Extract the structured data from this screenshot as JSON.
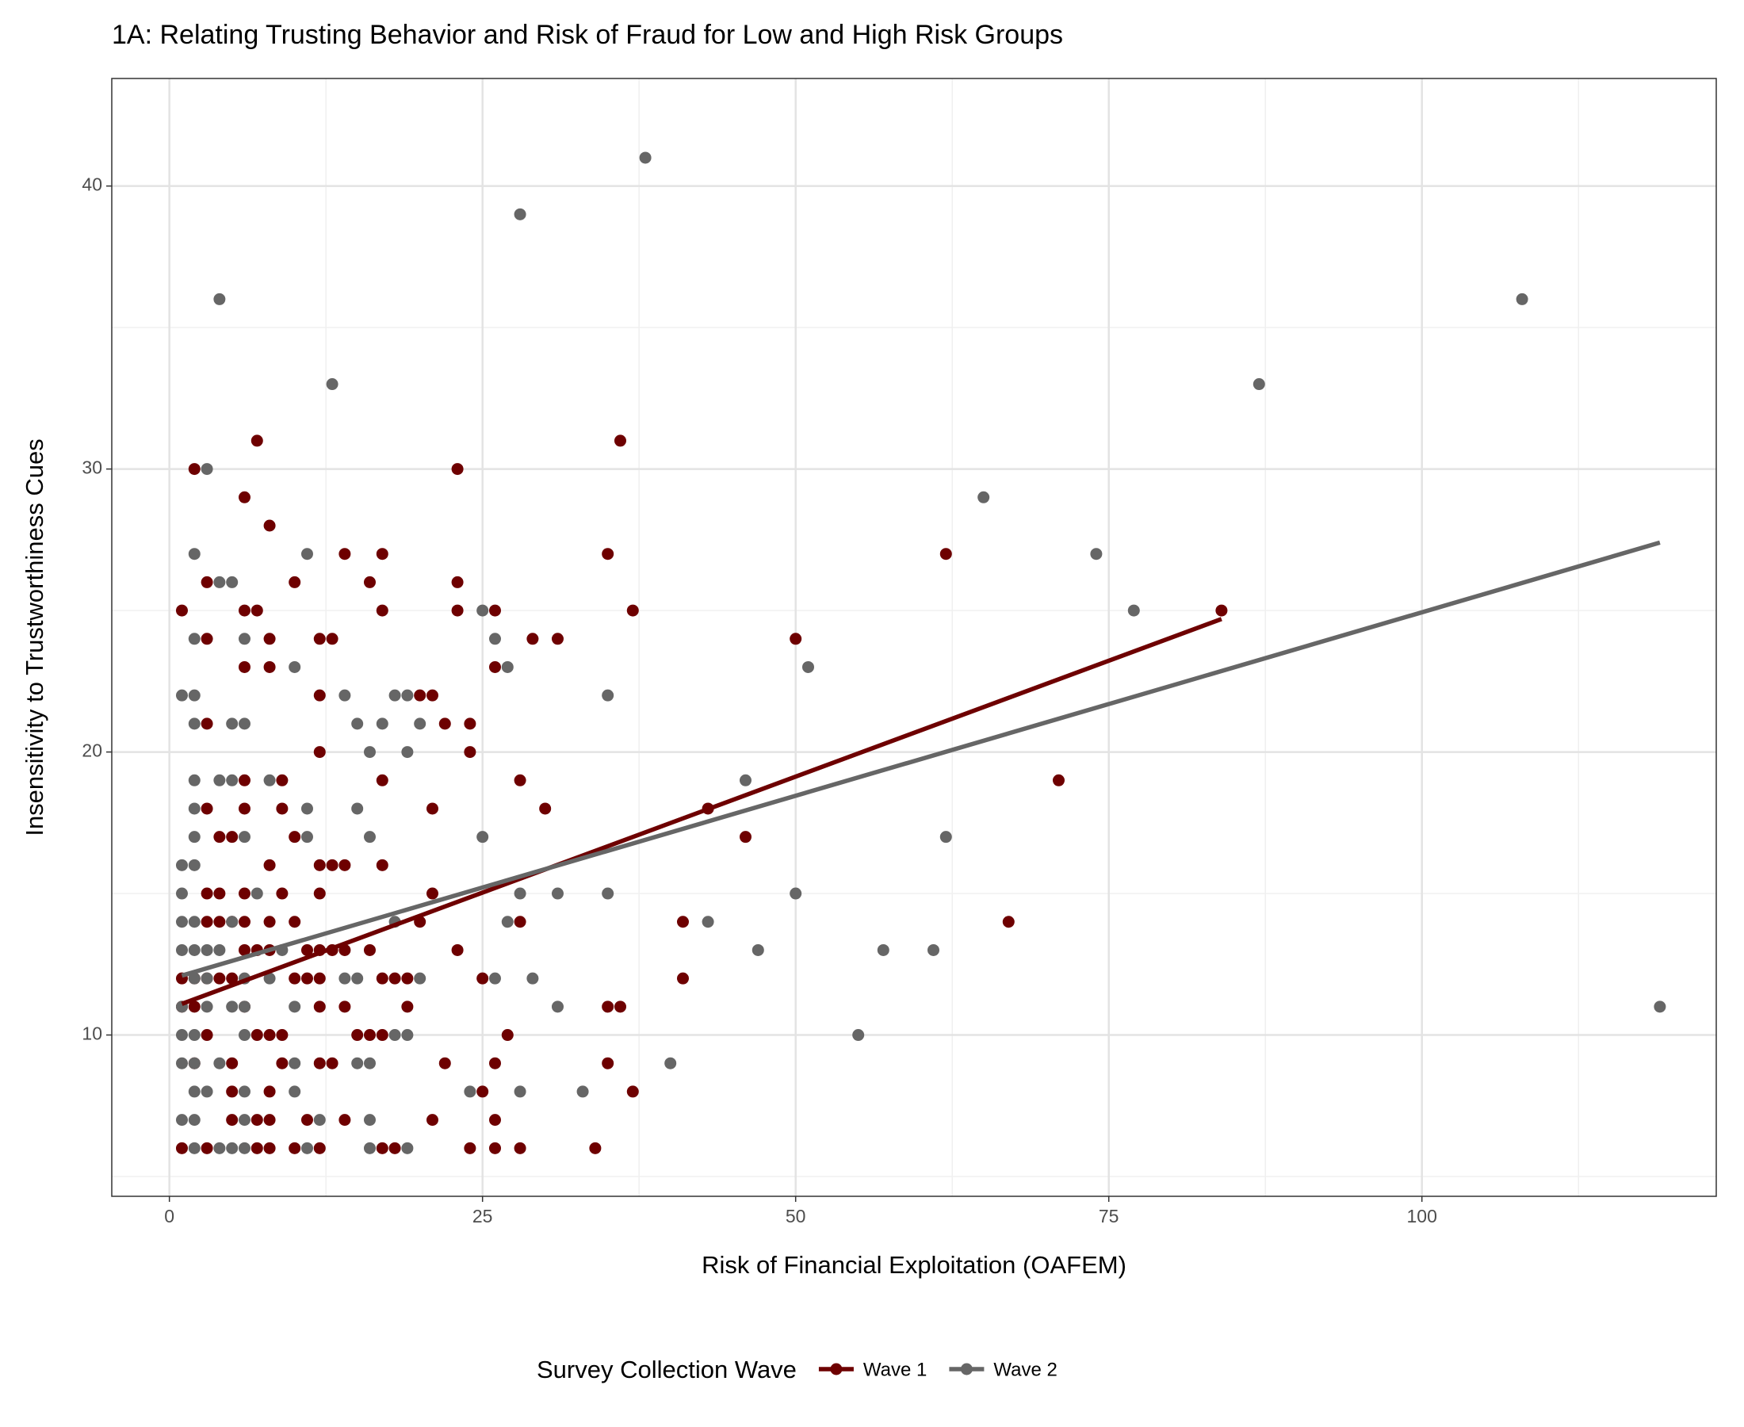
{
  "chart_data": {
    "type": "scatter",
    "title": "1A: Relating Trusting Behavior and Risk of Fraud for Low and High Risk Groups",
    "x_label": "Risk of Financial Exploitation (OAFEM)",
    "y_label": "Insensitivity to Trustworthiness Cues",
    "legend_title": "Survey Collection Wave",
    "legend_position": "bottom",
    "grid": true,
    "xlim": [
      -4.6,
      123.5
    ],
    "ylim": [
      4.3,
      43.8
    ],
    "xticks": [
      0,
      25,
      50,
      75,
      100
    ],
    "yticks": [
      10,
      20,
      30,
      40
    ],
    "x_minor_grid": [
      12.5,
      37.5,
      62.5,
      87.5,
      112.5
    ],
    "y_minor_grid": [
      5,
      15,
      25,
      35
    ],
    "series": [
      {
        "name": "Wave 1",
        "color": "#6e0000",
        "x": [
          1,
          2,
          3,
          3,
          3,
          6,
          7,
          8,
          6,
          7,
          6,
          8,
          8,
          10,
          12,
          13,
          14,
          16,
          17,
          17,
          12,
          12,
          20,
          21,
          22,
          24,
          24,
          23,
          23,
          23,
          26,
          26,
          29,
          31,
          35,
          36,
          37,
          28,
          30,
          43,
          46,
          50,
          62,
          71,
          84,
          67,
          41,
          41,
          35,
          36,
          34,
          35,
          37,
          28,
          25,
          23,
          21,
          21,
          20,
          17,
          17,
          16,
          17,
          18,
          19,
          19,
          16,
          17,
          15,
          14,
          13,
          14,
          12,
          13,
          14,
          12,
          12,
          11,
          12,
          11,
          10,
          12,
          12,
          13,
          11,
          10,
          12,
          14,
          17,
          21,
          22,
          24,
          25,
          26,
          26,
          26,
          28,
          27,
          10,
          9,
          9,
          6,
          6,
          5,
          4,
          3,
          8,
          9,
          6,
          3,
          4,
          3,
          4,
          5,
          6,
          8,
          10,
          6,
          7,
          8,
          4,
          5,
          1,
          2,
          3,
          1,
          2,
          6,
          7,
          8,
          9,
          3,
          2,
          5,
          9,
          5,
          8,
          5,
          7,
          8,
          1,
          3,
          7,
          8,
          18
        ],
        "y": [
          25,
          30,
          26,
          24,
          21,
          29,
          31,
          28,
          25,
          25,
          23,
          24,
          23,
          26,
          24,
          24,
          27,
          26,
          27,
          25,
          22,
          20,
          22,
          22,
          21,
          21,
          20,
          30,
          26,
          25,
          25,
          23,
          24,
          24,
          27,
          31,
          25,
          19,
          18,
          18,
          17,
          24,
          27,
          19,
          25,
          14,
          14,
          12,
          11,
          11,
          6,
          9,
          8,
          14,
          12,
          13,
          15,
          18,
          14,
          19,
          16,
          13,
          12,
          12,
          12,
          11,
          10,
          10,
          10,
          11,
          13,
          13,
          16,
          16,
          16,
          15,
          13,
          13,
          12,
          12,
          12,
          11,
          9,
          9,
          7,
          6,
          6,
          7,
          6,
          7,
          9,
          6,
          8,
          9,
          7,
          6,
          6,
          10,
          17,
          19,
          18,
          19,
          18,
          17,
          17,
          18,
          16,
          15,
          15,
          15,
          15,
          14,
          14,
          14,
          14,
          14,
          14,
          13,
          13,
          13,
          12,
          12,
          12,
          12,
          12,
          11,
          11,
          11,
          10,
          10,
          10,
          10,
          9,
          9,
          9,
          8,
          8,
          7,
          7,
          7,
          6,
          6,
          6,
          6,
          6
        ],
        "trend_x": [
          1,
          84
        ],
        "trend_y": [
          11.1,
          24.7
        ]
      },
      {
        "name": "Wave 2",
        "color": "#666666",
        "x": [
          38,
          28,
          4,
          108,
          13,
          87,
          3,
          65,
          2,
          11,
          74,
          4,
          5,
          25,
          77,
          2,
          6,
          26,
          27,
          51,
          1,
          2,
          14,
          18,
          19,
          35,
          2,
          5,
          6,
          15,
          17,
          20,
          10,
          16,
          19,
          2,
          4,
          5,
          8,
          46,
          2,
          11,
          15,
          2,
          6,
          11,
          16,
          25,
          62,
          1,
          2,
          1,
          7,
          28,
          31,
          35,
          50,
          1,
          2,
          5,
          18,
          27,
          43,
          1,
          2,
          3,
          4,
          9,
          47,
          57,
          61,
          2,
          3,
          6,
          8,
          14,
          15,
          20,
          26,
          29,
          1,
          3,
          5,
          6,
          10,
          31,
          119,
          1,
          2,
          6,
          18,
          19,
          55,
          1,
          2,
          4,
          10,
          15,
          16,
          40,
          2,
          3,
          6,
          10,
          24,
          28,
          33,
          1,
          2,
          6,
          12,
          16,
          2,
          4,
          5,
          6,
          11,
          16,
          19
        ],
        "y": [
          41,
          39,
          36,
          36,
          33,
          33,
          30,
          29,
          27,
          27,
          27,
          26,
          26,
          25,
          25,
          24,
          24,
          24,
          23,
          23,
          22,
          22,
          22,
          22,
          22,
          22,
          21,
          21,
          21,
          21,
          21,
          21,
          23,
          20,
          20,
          19,
          19,
          19,
          19,
          19,
          18,
          18,
          18,
          17,
          17,
          17,
          17,
          17,
          17,
          16,
          16,
          15,
          15,
          15,
          15,
          15,
          15,
          14,
          14,
          14,
          14,
          14,
          14,
          13,
          13,
          13,
          13,
          13,
          13,
          13,
          13,
          12,
          12,
          12,
          12,
          12,
          12,
          12,
          12,
          12,
          11,
          11,
          11,
          11,
          11,
          11,
          11,
          10,
          10,
          10,
          10,
          10,
          10,
          9,
          9,
          9,
          9,
          9,
          9,
          9,
          8,
          8,
          8,
          8,
          8,
          8,
          8,
          7,
          7,
          7,
          7,
          7,
          6,
          6,
          6,
          6,
          6,
          6,
          6
        ],
        "trend_x": [
          1,
          119
        ],
        "trend_y": [
          12.1,
          27.4
        ]
      }
    ]
  }
}
